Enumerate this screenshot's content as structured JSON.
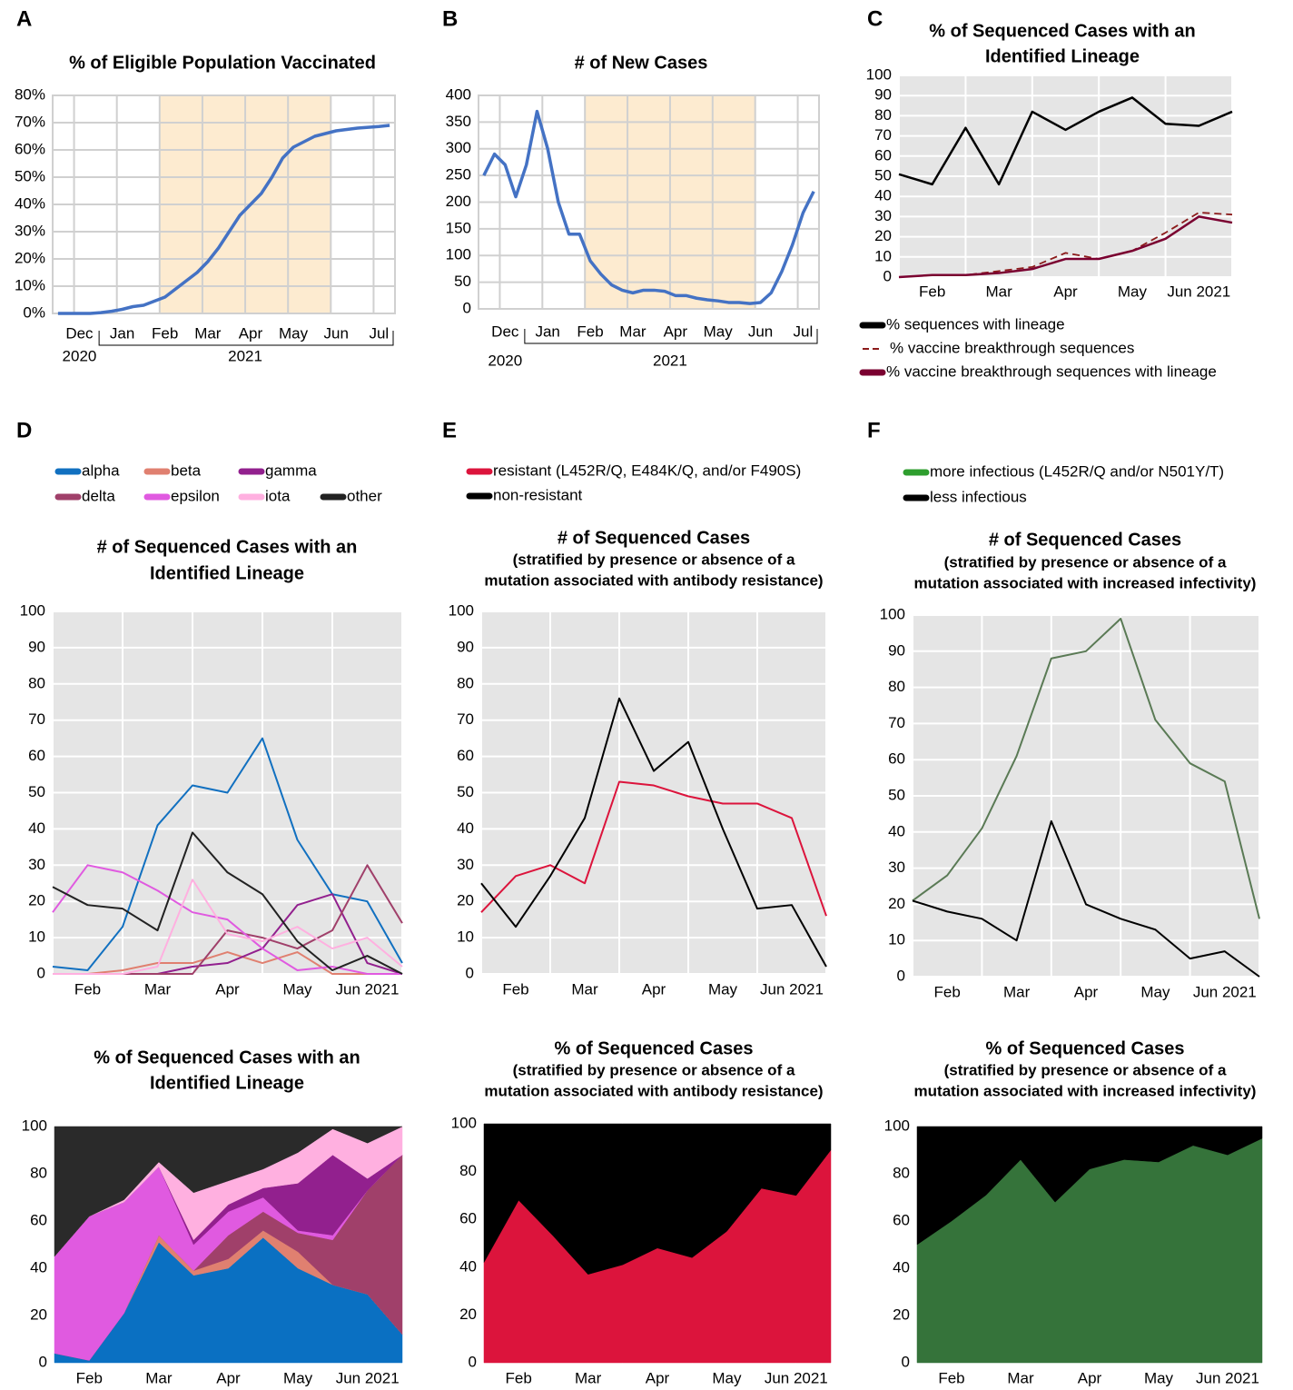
{
  "chart_data": [
    {
      "panel": "A",
      "type": "line",
      "title": [
        "% of Eligible Population Vaccinated"
      ],
      "grid": true,
      "grid_color": "#d0d0d0",
      "categories": [
        null,
        null,
        "Dec",
        null,
        null,
        null,
        "Jan",
        null,
        null,
        null,
        "Feb",
        null,
        null,
        null,
        "Mar",
        null,
        null,
        null,
        "Apr",
        null,
        null,
        null,
        "May",
        null,
        null,
        null,
        "Jun",
        null,
        null,
        null,
        "Jul",
        null
      ],
      "x_years": [
        "2020",
        "2021"
      ],
      "series": [
        {
          "color": "#4472c4",
          "values": [
            0,
            0,
            0,
            0,
            0.3,
            0.8,
            1.5,
            2.5,
            3,
            4.5,
            6,
            9,
            12,
            15,
            19,
            24,
            30,
            36,
            40,
            44,
            50,
            57,
            61,
            63,
            65,
            66,
            67,
            67.5,
            68,
            68.3,
            68.6,
            69
          ]
        }
      ],
      "ylim": [
        0,
        80
      ],
      "yticks": [
        {
          "value": 0,
          "label": "0%"
        },
        {
          "value": 10,
          "label": "10%"
        },
        {
          "value": 20,
          "label": "20%"
        },
        {
          "value": 30,
          "label": "30%"
        },
        {
          "value": 40,
          "label": "40%"
        },
        {
          "value": 50,
          "label": "50%"
        },
        {
          "value": 60,
          "label": "60%"
        },
        {
          "value": 70,
          "label": "70%"
        },
        {
          "value": 80,
          "label": "80%"
        }
      ]
    },
    {
      "panel": "B",
      "type": "line",
      "title": [
        "# of New Cases"
      ],
      "grid": true,
      "grid_color": "#d0d0d0",
      "categories": [
        null,
        null,
        "Dec",
        null,
        null,
        null,
        "Jan",
        null,
        null,
        null,
        "Feb",
        null,
        null,
        null,
        "Mar",
        null,
        null,
        null,
        "Apr",
        null,
        null,
        null,
        "May",
        null,
        null,
        null,
        "Jun",
        null,
        null,
        null,
        "Jul",
        null
      ],
      "x_years": [
        "2020",
        "2021"
      ],
      "series": [
        {
          "color": "#4472c4",
          "values": [
            250,
            290,
            270,
            210,
            270,
            370,
            300,
            200,
            140,
            140,
            90,
            65,
            45,
            35,
            30,
            35,
            35,
            33,
            25,
            25,
            20,
            17,
            15,
            12,
            12,
            10,
            12,
            30,
            70,
            120,
            180,
            220
          ]
        }
      ],
      "ylim": [
        0,
        400
      ],
      "yticks": [
        0,
        50,
        100,
        150,
        200,
        250,
        300,
        350,
        400
      ]
    },
    {
      "panel": "C",
      "type": "line",
      "title": [
        "% of Sequenced Cases with an",
        "Identified Lineage"
      ],
      "grid": true,
      "grid_color": "#ffffff",
      "background": "#e5e5e5",
      "categories": [
        null,
        "Feb",
        null,
        "Mar",
        null,
        "Apr",
        null,
        "May",
        null,
        "Jun 2021",
        null
      ],
      "series": [
        {
          "name": "% sequences with lineage",
          "color": "#000000",
          "values": [
            51,
            46,
            74,
            46,
            82,
            73,
            82,
            89,
            76,
            75,
            82
          ]
        },
        {
          "name": "% vaccine breakthrough sequences",
          "color": "#8b1a1a",
          "dash": true,
          "values": [
            0,
            1,
            1,
            3,
            5,
            12,
            9,
            13,
            22,
            32,
            31
          ]
        },
        {
          "name": "% vaccine breakthrough sequences with lineage",
          "color": "#7a0030",
          "values": [
            0,
            1,
            1,
            2,
            4,
            9,
            9,
            13,
            19,
            30,
            27
          ]
        }
      ],
      "ylim": [
        0,
        100
      ],
      "yticks": [
        0,
        10,
        20,
        30,
        40,
        50,
        60,
        70,
        80,
        90,
        100
      ]
    },
    {
      "panel": "D",
      "type": "line",
      "title": [
        "# of Sequenced Cases with an",
        "Identified Lineage"
      ],
      "grid": true,
      "grid_color": "#ffffff",
      "background": "#e5e5e5",
      "categories": [
        null,
        "Feb",
        null,
        "Mar",
        null,
        "Apr",
        null,
        "May",
        null,
        "Jun 2021",
        null
      ],
      "series": [
        {
          "name": "alpha",
          "color": "#1170c0",
          "values": [
            2,
            1,
            13,
            41,
            52,
            50,
            65,
            37,
            22,
            20,
            3
          ]
        },
        {
          "name": "beta",
          "color": "#e08070",
          "values": [
            0,
            0,
            1,
            3,
            3,
            6,
            3,
            6,
            0,
            0,
            0
          ]
        },
        {
          "name": "gamma",
          "color": "#92208e",
          "values": [
            0,
            0,
            0,
            0,
            2,
            3,
            7,
            19,
            22,
            3,
            0
          ]
        },
        {
          "name": "delta",
          "color": "#a0406a",
          "values": [
            0,
            0,
            0,
            0,
            0,
            12,
            10,
            7,
            12,
            30,
            14
          ]
        },
        {
          "name": "epsilon",
          "color": "#e05ae0",
          "values": [
            17,
            30,
            28,
            23,
            17,
            15,
            7,
            1,
            2,
            0,
            0
          ]
        },
        {
          "name": "iota",
          "color": "#ffb0e0",
          "values": [
            0,
            0,
            0,
            2,
            26,
            11,
            9,
            13,
            7,
            10,
            2
          ]
        },
        {
          "name": "other",
          "color": "#222222",
          "values": [
            24,
            19,
            18,
            12,
            39,
            28,
            22,
            9,
            1,
            5,
            0
          ]
        }
      ],
      "ylim": [
        0,
        100
      ],
      "yticks": [
        0,
        10,
        20,
        30,
        40,
        50,
        60,
        70,
        80,
        90,
        100
      ]
    },
    {
      "type": "stacked_area",
      "title": [
        "% of Sequenced Cases with an",
        "Identified Lineage"
      ],
      "categories": [
        null,
        "Feb",
        null,
        "Mar",
        null,
        "Apr",
        null,
        "May",
        null,
        "Jun 2021",
        null
      ],
      "series": [
        {
          "color": "#0a70c2",
          "values": [
            4,
            1,
            21,
            51,
            37,
            40,
            53,
            40,
            33,
            29,
            12
          ]
        },
        {
          "color": "#e08070",
          "values": [
            0,
            0,
            0,
            3,
            2,
            4,
            3,
            7,
            0,
            0,
            0
          ]
        },
        {
          "color": "#a0406a",
          "values": [
            0,
            0,
            0,
            0,
            0,
            10,
            8,
            8,
            19,
            44,
            76
          ]
        },
        {
          "color": "#e05ae0",
          "values": [
            41,
            61,
            47,
            29,
            11,
            10,
            6,
            1,
            2,
            0,
            0
          ]
        },
        {
          "color": "#92208e",
          "values": [
            0,
            0,
            0,
            0,
            2,
            3,
            4,
            20,
            34,
            5,
            0
          ]
        },
        {
          "color": "#ffb0e0",
          "values": [
            0,
            0,
            1,
            2,
            20,
            10,
            8,
            13,
            11,
            15,
            12
          ]
        },
        {
          "color": "#2a2a2a",
          "values": [
            55,
            38,
            31,
            15,
            28,
            23,
            18,
            11,
            1,
            7,
            0
          ]
        }
      ],
      "ylim": [
        0,
        100
      ],
      "yticks": [
        0,
        20,
        40,
        60,
        80,
        100
      ]
    },
    {
      "panel": "E",
      "type": "line",
      "title": [
        "# of Sequenced Cases"
      ],
      "subtitle": [
        "(stratified by presence or absence of a",
        "mutation associated with antibody resistance)"
      ],
      "grid": true,
      "grid_color": "#ffffff",
      "background": "#e5e5e5",
      "categories": [
        null,
        "Feb",
        null,
        "Mar",
        null,
        "Apr",
        null,
        "May",
        null,
        "Jun 2021",
        null
      ],
      "series": [
        {
          "name": "resistant (L452R/Q, E484K/Q, and/or F490S)",
          "color": "#dc143c",
          "values": [
            17,
            27,
            30,
            25,
            53,
            52,
            49,
            47,
            47,
            43,
            16
          ]
        },
        {
          "name": "non-resistant",
          "color": "#000000",
          "values": [
            25,
            13,
            27,
            43,
            76,
            56,
            64,
            40,
            18,
            19,
            2
          ]
        }
      ],
      "ylim": [
        0,
        100
      ],
      "yticks": [
        0,
        10,
        20,
        30,
        40,
        50,
        60,
        70,
        80,
        90,
        100
      ]
    },
    {
      "type": "stacked_area",
      "title": [
        "% of Sequenced Cases"
      ],
      "subtitle": [
        "(stratified by presence or absence of a",
        "mutation associated with antibody resistance)"
      ],
      "categories": [
        null,
        "Feb",
        null,
        "Mar",
        null,
        "Apr",
        null,
        "May",
        null,
        "Jun 2021",
        null
      ],
      "series": [
        {
          "color": "#dc143c",
          "values": [
            42,
            68,
            53,
            37,
            41,
            48,
            44,
            55,
            73,
            70,
            89
          ]
        },
        {
          "color": "#000000",
          "values": [
            58,
            32,
            47,
            63,
            59,
            52,
            56,
            45,
            27,
            30,
            11
          ]
        }
      ],
      "ylim": [
        0,
        100
      ],
      "yticks": [
        0,
        20,
        40,
        60,
        80,
        100
      ]
    },
    {
      "panel": "F",
      "type": "line",
      "title": [
        "# of Sequenced Cases"
      ],
      "subtitle": [
        "(stratified by presence or absence of a",
        "mutation associated with increased infectivity)"
      ],
      "grid": true,
      "grid_color": "#ffffff",
      "background": "#e5e5e5",
      "categories": [
        null,
        "Feb",
        null,
        "Mar",
        null,
        "Apr",
        null,
        "May",
        null,
        "Jun 2021",
        null
      ],
      "series": [
        {
          "name": "more infectious (L452R/Q and/or N501Y/T)",
          "color": "#5a7a55",
          "legend_color": "#2e9e2e",
          "values": [
            21,
            28,
            41,
            61,
            88,
            90,
            99,
            71,
            59,
            54,
            16
          ]
        },
        {
          "name": "less infectious",
          "color": "#000000",
          "values": [
            21,
            18,
            16,
            10,
            43,
            20,
            16,
            13,
            5,
            7,
            0
          ]
        }
      ],
      "ylim": [
        0,
        100
      ],
      "yticks": [
        0,
        10,
        20,
        30,
        40,
        50,
        60,
        70,
        80,
        90,
        100
      ]
    },
    {
      "type": "stacked_area",
      "title": [
        "% of Sequenced Cases"
      ],
      "subtitle": [
        "(stratified by presence or absence of a",
        "mutation associated with increased infectivity)"
      ],
      "categories": [
        null,
        "Feb",
        null,
        "Mar",
        null,
        "Apr",
        null,
        "May",
        null,
        "Jun 2021",
        null
      ],
      "series": [
        {
          "color": "#35733a",
          "values": [
            50,
            60,
            71,
            86,
            68,
            82,
            86,
            85,
            92,
            88,
            95
          ]
        },
        {
          "color": "#000000",
          "values": [
            50,
            40,
            29,
            14,
            32,
            18,
            14,
            15,
            8,
            12,
            5
          ]
        }
      ],
      "ylim": [
        0,
        100
      ],
      "yticks": [
        0,
        20,
        40,
        60,
        80,
        100
      ]
    }
  ]
}
